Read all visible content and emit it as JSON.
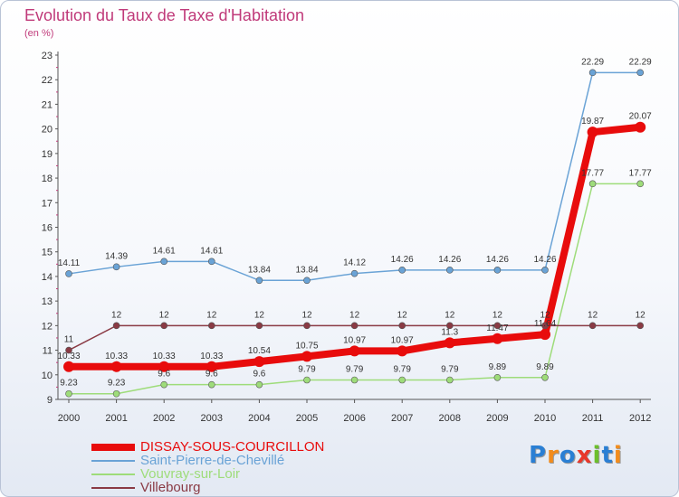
{
  "title": "Evolution du Taux de Taxe d'Habitation",
  "subtitle": "(en %)",
  "logo": {
    "text": "Proxiti",
    "colors": [
      "#2a7fd4",
      "#f28c1c",
      "#2a7fd4",
      "#e8382b",
      "#6cbf2c",
      "#2a7fd4",
      "#f28c1c"
    ]
  },
  "chart_data": {
    "type": "line",
    "title": "Evolution du Taux de Taxe d'Habitation",
    "ylabel": "(en %)",
    "xlabel": "",
    "x": [
      "2000",
      "2001",
      "2002",
      "2003",
      "2004",
      "2005",
      "2006",
      "2007",
      "2008",
      "2009",
      "2010",
      "2011",
      "2012"
    ],
    "ylim": [
      9,
      23
    ],
    "yticks": [
      "9",
      "10",
      "11",
      "12",
      "13",
      "14",
      "15",
      "16",
      "17",
      "18",
      "19",
      "20",
      "21",
      "22",
      "23"
    ],
    "grid": false,
    "legend": "bottom-left",
    "series": [
      {
        "name": "DISSAY-SOUS-COURCILLON",
        "color": "#e80c0c",
        "values": [
          10.33,
          10.33,
          10.33,
          10.33,
          10.54,
          10.75,
          10.97,
          10.97,
          11.3,
          11.47,
          11.64,
          19.87,
          20.07
        ],
        "labels": [
          "10.33",
          "10.33",
          "10.33",
          "10.33",
          "10.54",
          "10.75",
          "10.97",
          "10.97",
          "11.3",
          "11.47",
          "11.64",
          "19.87",
          "20.07"
        ]
      },
      {
        "name": "Saint-Pierre-de-Chevillé",
        "color": "#6aa3d6",
        "values": [
          14.11,
          14.39,
          14.61,
          14.61,
          13.84,
          13.84,
          14.12,
          14.26,
          14.26,
          14.26,
          14.26,
          22.29,
          22.29
        ],
        "labels": [
          "14.11",
          "14.39",
          "14.61",
          "14.61",
          "13.84",
          "13.84",
          "14.12",
          "14.26",
          "14.26",
          "14.26",
          "14.26",
          "22.29",
          "22.29"
        ]
      },
      {
        "name": "Vouvray-sur-Loir",
        "color": "#9edc7a",
        "values": [
          9.23,
          9.23,
          9.6,
          9.6,
          9.6,
          9.79,
          9.79,
          9.79,
          9.79,
          9.89,
          9.89,
          17.77,
          17.77
        ],
        "labels": [
          "9.23",
          "9.23",
          "9.6",
          "9.6",
          "9.6",
          "9.79",
          "9.79",
          "9.79",
          "9.79",
          "9.89",
          "9.89",
          "17.77",
          "17.77"
        ]
      },
      {
        "name": "Villebourg",
        "color": "#8a3a44",
        "values": [
          11,
          12,
          12,
          12,
          12,
          12,
          12,
          12,
          12,
          12,
          12,
          12,
          12
        ],
        "labels": [
          "11",
          "12",
          "12",
          "12",
          "12",
          "12",
          "12",
          "12",
          "12",
          "12",
          "12",
          "12",
          "12"
        ]
      }
    ]
  }
}
